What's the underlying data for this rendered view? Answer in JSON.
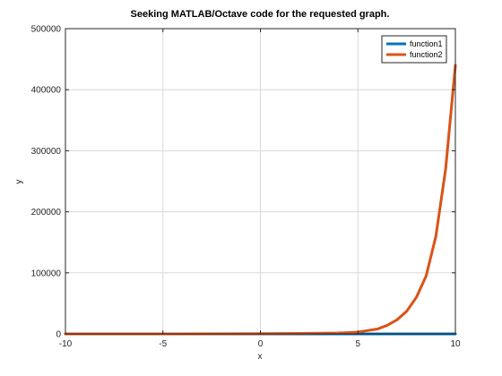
{
  "chart_data": {
    "type": "line",
    "title": "Seeking MATLAB/Octave code for the requested graph.",
    "xlabel": "x",
    "ylabel": "y",
    "xlim": [
      -10,
      10
    ],
    "ylim": [
      0,
      500000
    ],
    "x_ticks": [
      -10,
      -5,
      0,
      5,
      10
    ],
    "x_tick_labels": [
      "-10",
      "-5",
      "0",
      "5",
      "10"
    ],
    "y_ticks": [
      0,
      100000,
      200000,
      300000,
      400000,
      500000
    ],
    "y_tick_labels": [
      "0",
      "100000",
      "200000",
      "300000",
      "400000",
      "500000"
    ],
    "grid": true,
    "legend_position": "top-right",
    "x": [
      -10,
      -8,
      -6,
      -4,
      -2,
      0,
      2,
      4,
      5,
      6,
      6.5,
      7,
      7.5,
      8,
      8.5,
      9,
      9.5,
      10
    ],
    "series": [
      {
        "name": "function1",
        "color": "#0072bd",
        "values": [
          0,
          0,
          0,
          0,
          0,
          0,
          0,
          0,
          0,
          0,
          0,
          0,
          0,
          0,
          0,
          0,
          0,
          0
        ]
      },
      {
        "name": "function2",
        "color": "#d95319",
        "values": [
          0,
          0,
          0,
          30,
          200,
          400,
          800,
          1500,
          3000,
          8000,
          14000,
          23000,
          37000,
          60000,
          95000,
          160000,
          270000,
          440000
        ]
      }
    ]
  }
}
